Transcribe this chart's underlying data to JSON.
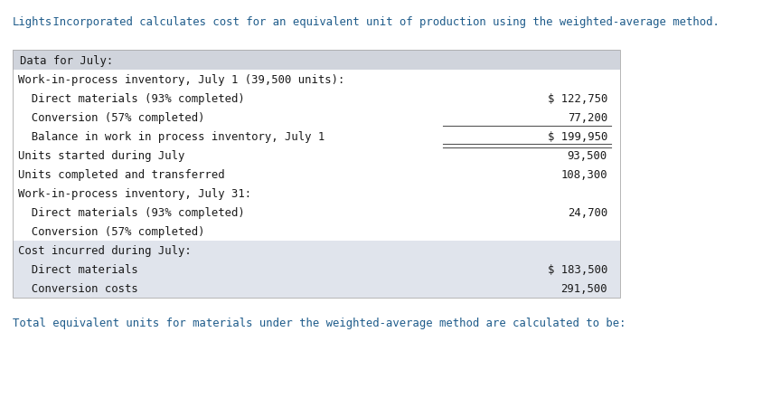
{
  "intro_text_1": "Lights",
  "intro_text_2": " Incorporated calculates cost for an equivalent unit of production using the weighted-average method.",
  "intro_color": "#1F5C8B",
  "footer_text": "Total equivalent units for materials under the weighted-average method are calculated to be:",
  "footer_color": "#1F5C8B",
  "header_label": "Data for July:",
  "header_bg": "#D0D4DC",
  "rows": [
    {
      "label": "Work-in-process inventory, July 1 (39,500 units):",
      "value": "",
      "indent": 0,
      "bold": false,
      "bg": "#FFFFFF",
      "underline": false,
      "double_underline": false
    },
    {
      "label": "  Direct materials (93% completed)",
      "value": "$ 122,750",
      "indent": 0,
      "bold": false,
      "bg": "#FFFFFF",
      "underline": false,
      "double_underline": false
    },
    {
      "label": "  Conversion (57% completed)",
      "value": "77,200",
      "indent": 0,
      "bold": false,
      "bg": "#FFFFFF",
      "underline": true,
      "double_underline": false
    },
    {
      "label": "  Balance in work in process inventory, July 1",
      "value": "$ 199,950",
      "indent": 0,
      "bold": false,
      "bg": "#FFFFFF",
      "underline": false,
      "double_underline": true
    },
    {
      "label": "Units started during July",
      "value": "93,500",
      "indent": 0,
      "bold": false,
      "bg": "#FFFFFF",
      "underline": false,
      "double_underline": false
    },
    {
      "label": "Units completed and transferred",
      "value": "108,300",
      "indent": 0,
      "bold": false,
      "bg": "#FFFFFF",
      "underline": false,
      "double_underline": false
    },
    {
      "label": "Work-in-process inventory, July 31:",
      "value": "",
      "indent": 0,
      "bold": false,
      "bg": "#FFFFFF",
      "underline": false,
      "double_underline": false
    },
    {
      "label": "  Direct materials (93% completed)",
      "value": "24,700",
      "indent": 0,
      "bold": false,
      "bg": "#FFFFFF",
      "underline": false,
      "double_underline": false
    },
    {
      "label": "  Conversion (57% completed)",
      "value": "",
      "indent": 0,
      "bold": false,
      "bg": "#FFFFFF",
      "underline": false,
      "double_underline": false
    },
    {
      "label": "Cost incurred during July:",
      "value": "",
      "indent": 0,
      "bold": false,
      "bg": "#E0E4EC",
      "underline": false,
      "double_underline": false
    },
    {
      "label": "  Direct materials",
      "value": "$ 183,500",
      "indent": 0,
      "bold": false,
      "bg": "#E0E4EC",
      "underline": false,
      "double_underline": false
    },
    {
      "label": "  Conversion costs",
      "value": "291,500",
      "indent": 0,
      "bold": false,
      "bg": "#E0E4EC",
      "underline": false,
      "double_underline": false
    }
  ],
  "text_color": "#1A1A1A",
  "font_size": 8.8,
  "mono_font": "DejaVu Sans Mono"
}
